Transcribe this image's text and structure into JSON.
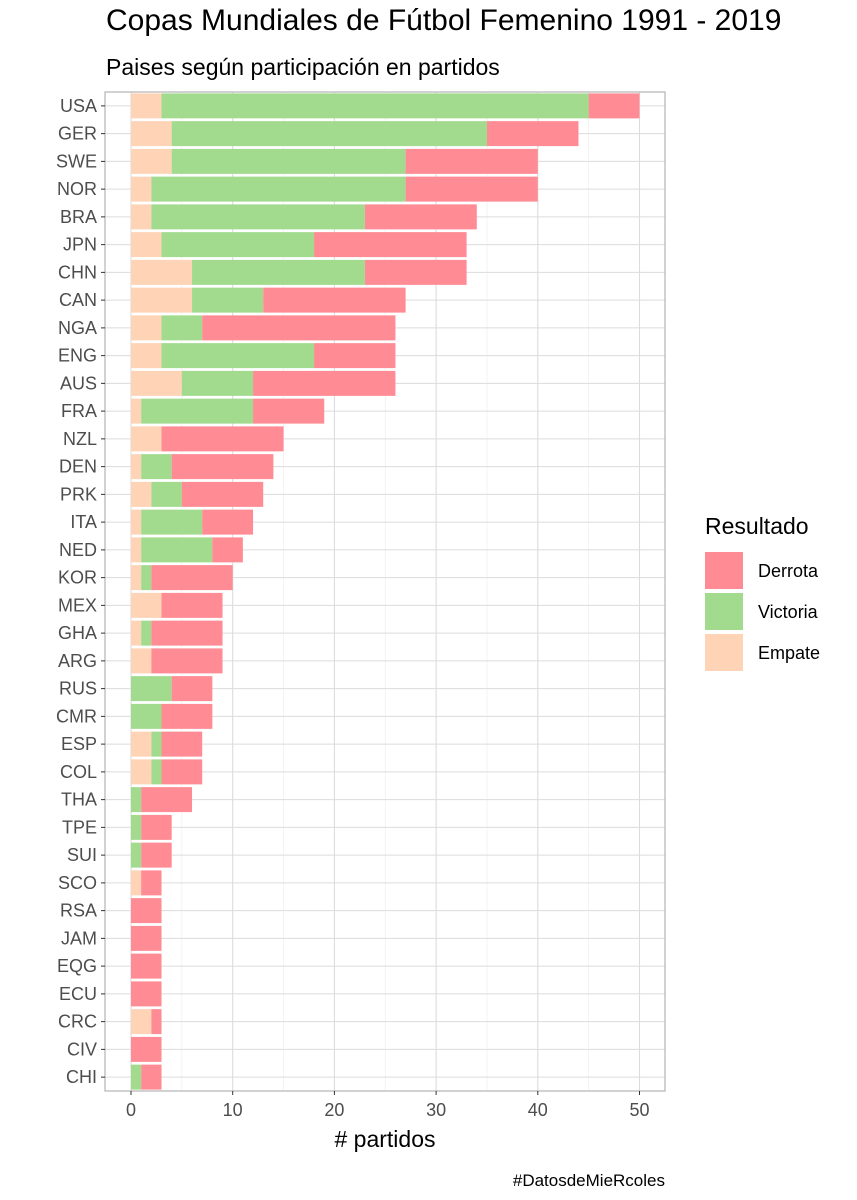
{
  "chart_data": {
    "type": "bar",
    "orientation": "horizontal",
    "stacked": true,
    "title": "Copas Mundiales de Fútbol Femenino 1991 - 2019",
    "subtitle": "Paises según participación en partidos",
    "xlabel": "# partidos",
    "ylabel": "",
    "caption": "#DatosdeMieRcoles",
    "xlim": [
      0,
      52
    ],
    "x_ticks": [
      0,
      10,
      20,
      30,
      40,
      50
    ],
    "grid": true,
    "legend": {
      "title": "Resultado",
      "placement": "right",
      "entries": [
        "Derrota",
        "Victoria",
        "Empate"
      ]
    },
    "colors": {
      "Derrota": "#FF8B94",
      "Victoria": "#A2DB8E",
      "Empate": "#FFD3B5"
    },
    "categories": [
      "USA",
      "GER",
      "SWE",
      "NOR",
      "BRA",
      "JPN",
      "CHN",
      "CAN",
      "NGA",
      "ENG",
      "AUS",
      "FRA",
      "NZL",
      "DEN",
      "PRK",
      "ITA",
      "NED",
      "KOR",
      "MEX",
      "GHA",
      "ARG",
      "RUS",
      "CMR",
      "ESP",
      "COL",
      "THA",
      "TPE",
      "SUI",
      "SCO",
      "RSA",
      "JAM",
      "EQG",
      "ECU",
      "CRC",
      "CIV",
      "CHI"
    ],
    "series": [
      {
        "name": "Empate",
        "values": [
          3,
          4,
          4,
          2,
          2,
          3,
          6,
          6,
          3,
          3,
          5,
          1,
          3,
          1,
          2,
          1,
          1,
          1,
          3,
          1,
          2,
          0,
          0,
          2,
          2,
          0,
          0,
          0,
          1,
          0,
          0,
          0,
          0,
          2,
          0,
          0
        ]
      },
      {
        "name": "Victoria",
        "values": [
          42,
          31,
          23,
          25,
          21,
          15,
          17,
          7,
          4,
          15,
          7,
          11,
          0,
          3,
          3,
          6,
          7,
          1,
          0,
          1,
          0,
          4,
          3,
          1,
          1,
          1,
          1,
          1,
          0,
          0,
          0,
          0,
          0,
          0,
          0,
          1
        ]
      },
      {
        "name": "Derrota",
        "values": [
          5,
          9,
          13,
          13,
          11,
          15,
          10,
          14,
          19,
          8,
          14,
          7,
          12,
          10,
          8,
          5,
          3,
          8,
          6,
          7,
          7,
          4,
          5,
          4,
          4,
          5,
          3,
          3,
          2,
          3,
          3,
          3,
          3,
          1,
          3,
          2
        ]
      }
    ]
  }
}
